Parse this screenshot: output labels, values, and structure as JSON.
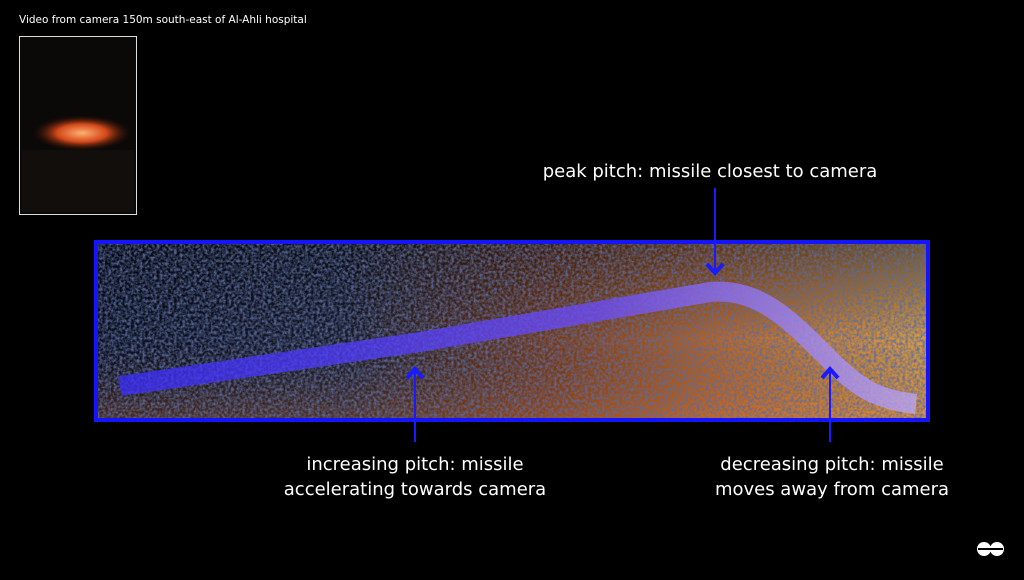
{
  "video": {
    "caption": "Video from camera 150m south-east of Al-Ahli hospital"
  },
  "annotations": [
    {
      "lines": [
        "peak pitch: missile closest to camera"
      ]
    },
    {
      "lines": [
        "increasing pitch: missile",
        "accelerating towards camera"
      ]
    },
    {
      "lines": [
        "decreasing pitch: missile",
        "moves away from camera"
      ]
    }
  ]
}
